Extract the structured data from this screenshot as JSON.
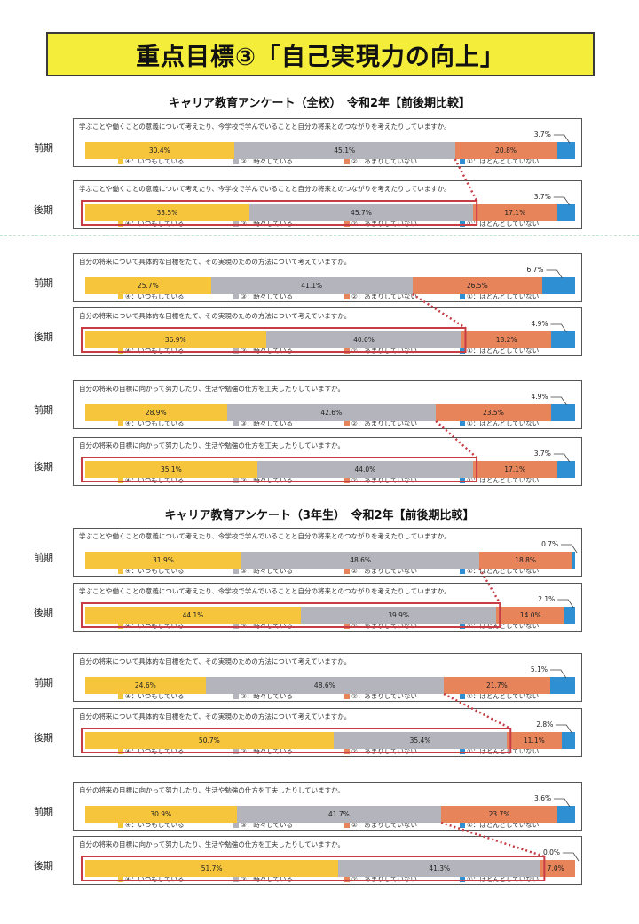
{
  "title": "重点目標③「自己実現力の向上」",
  "sections": [
    {
      "title": "キャリア教育アンケート（全校）　令和2年【前後期比較】"
    },
    {
      "title": "キャリア教育アンケート（3年生）　令和2年【前後期比較】"
    }
  ],
  "legend": [
    "④：いつもしている",
    "③：時々している",
    "②：あまりしていない",
    "①：ほとんどしていない"
  ],
  "colors": {
    "c4": "#f6c53c",
    "c3": "#b4b5bc",
    "c2": "#e8845a",
    "c1": "#2e8fd2",
    "highlight": "#c83c46"
  },
  "periods": {
    "first": "前期",
    "second": "後期"
  },
  "chart_data": [
    {
      "type": "bar",
      "section": 0,
      "question": "学ぶことや働くことの意義について考えたり、今学校で学んでいることと自分の将来とのつながりを考えたりしていますか。",
      "series_names": [
        "④：いつもしている",
        "③：時々している",
        "②：あまりしていない",
        "①：ほとんどしていない"
      ],
      "categories": [
        "前期",
        "後期"
      ],
      "values": [
        [
          30.4,
          45.1,
          20.8,
          3.7
        ],
        [
          33.5,
          45.7,
          17.1,
          3.7
        ]
      ],
      "labels": [
        [
          "30.4%",
          "45.1%",
          "20.8%",
          "3.7%"
        ],
        [
          "33.5%",
          "45.7%",
          "17.1%",
          "3.7%"
        ]
      ]
    },
    {
      "type": "bar",
      "section": 0,
      "question": "自分の将来について具体的な目標をたて、その実現のための方法について考えていますか。",
      "series_names": [
        "④：いつもしている",
        "③：時々している",
        "②：あまりしていない",
        "①：ほとんどしていない"
      ],
      "categories": [
        "前期",
        "後期"
      ],
      "values": [
        [
          25.7,
          41.1,
          26.5,
          6.7
        ],
        [
          36.9,
          40.0,
          18.2,
          4.9
        ]
      ],
      "labels": [
        [
          "25.7%",
          "41.1%",
          "26.5%",
          "6.7%"
        ],
        [
          "36.9%",
          "40.0%",
          "18.2%",
          "4.9%"
        ]
      ]
    },
    {
      "type": "bar",
      "section": 0,
      "question": "自分の将来の目標に向かって努力したり、生活や勉強の仕方を工夫したりしていますか。",
      "series_names": [
        "④：いつもしている",
        "③：時々している",
        "②：あまりしていない",
        "①：ほとんどしていない"
      ],
      "categories": [
        "前期",
        "後期"
      ],
      "values": [
        [
          28.9,
          42.6,
          23.5,
          4.9
        ],
        [
          35.1,
          44.0,
          17.1,
          3.7
        ]
      ],
      "labels": [
        [
          "28.9%",
          "42.6%",
          "23.5%",
          "4.9%"
        ],
        [
          "35.1%",
          "44.0%",
          "17.1%",
          "3.7%"
        ]
      ]
    },
    {
      "type": "bar",
      "section": 1,
      "question": "学ぶことや働くことの意義について考えたり、今学校で学んでいることと自分の将来とのつながりを考えたりしていますか。",
      "series_names": [
        "④：いつもしている",
        "③：時々している",
        "②：あまりしていない",
        "①：ほとんどしていない"
      ],
      "categories": [
        "前期",
        "後期"
      ],
      "values": [
        [
          31.9,
          48.6,
          18.8,
          0.7
        ],
        [
          44.1,
          39.9,
          14.0,
          2.1
        ]
      ],
      "labels": [
        [
          "31.9%",
          "48.6%",
          "18.8%",
          "0.7%"
        ],
        [
          "44.1%",
          "39.9%",
          "14.0%",
          "2.1%"
        ]
      ]
    },
    {
      "type": "bar",
      "section": 1,
      "question": "自分の将来について具体的な目標をたて、その実現のための方法について考えていますか。",
      "series_names": [
        "④：いつもしている",
        "③：時々している",
        "②：あまりしていない",
        "①：ほとんどしていない"
      ],
      "categories": [
        "前期",
        "後期"
      ],
      "values": [
        [
          24.6,
          48.6,
          21.7,
          5.1
        ],
        [
          50.7,
          35.4,
          11.1,
          2.8
        ]
      ],
      "labels": [
        [
          "24.6%",
          "48.6%",
          "21.7%",
          "5.1%"
        ],
        [
          "50.7%",
          "35.4%",
          "11.1%",
          "2.8%"
        ]
      ]
    },
    {
      "type": "bar",
      "section": 1,
      "question": "自分の将来の目標に向かって努力したり、生活や勉強の仕方を工夫したりしていますか。",
      "series_names": [
        "④：いつもしている",
        "③：時々している",
        "②：あまりしていない",
        "①：ほとんどしていない"
      ],
      "categories": [
        "前期",
        "後期"
      ],
      "values": [
        [
          30.9,
          41.7,
          23.7,
          3.6
        ],
        [
          51.7,
          41.3,
          7.0,
          0.0
        ]
      ],
      "labels": [
        [
          "30.9%",
          "41.7%",
          "23.7%",
          "3.6%"
        ],
        [
          "51.7%",
          "41.3%",
          "7.0%",
          "0.0%"
        ]
      ]
    }
  ]
}
